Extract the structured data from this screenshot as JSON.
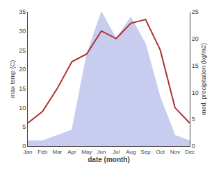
{
  "chart_data": {
    "type": "line",
    "categories": [
      "Jan",
      "Feb",
      "Mar",
      "Apr",
      "May",
      "Jun",
      "Jul",
      "Aug",
      "Sep",
      "Oct",
      "Nov",
      "Dec"
    ],
    "series": [
      {
        "type": "area",
        "color": "#c8cdf0",
        "axis": "y2",
        "values": [
          1,
          1,
          2,
          3,
          17,
          25,
          20,
          24,
          19,
          9,
          2,
          1
        ]
      },
      {
        "type": "line",
        "color": "#b03030",
        "values": [
          6,
          9,
          15,
          22,
          24,
          30,
          28,
          32,
          33,
          25,
          10,
          6
        ]
      }
    ],
    "xlabel": "date (month)",
    "ylabel": "max temp (C)",
    "y2label": "med. precipitation (kg/m2)",
    "ylim": [
      0,
      35
    ],
    "yticks": [
      0,
      5,
      10,
      15,
      20,
      25,
      30,
      35
    ],
    "y2lim": [
      0,
      25
    ],
    "y2ticks": [
      0,
      5,
      10,
      15,
      20,
      25
    ],
    "grid": false
  }
}
